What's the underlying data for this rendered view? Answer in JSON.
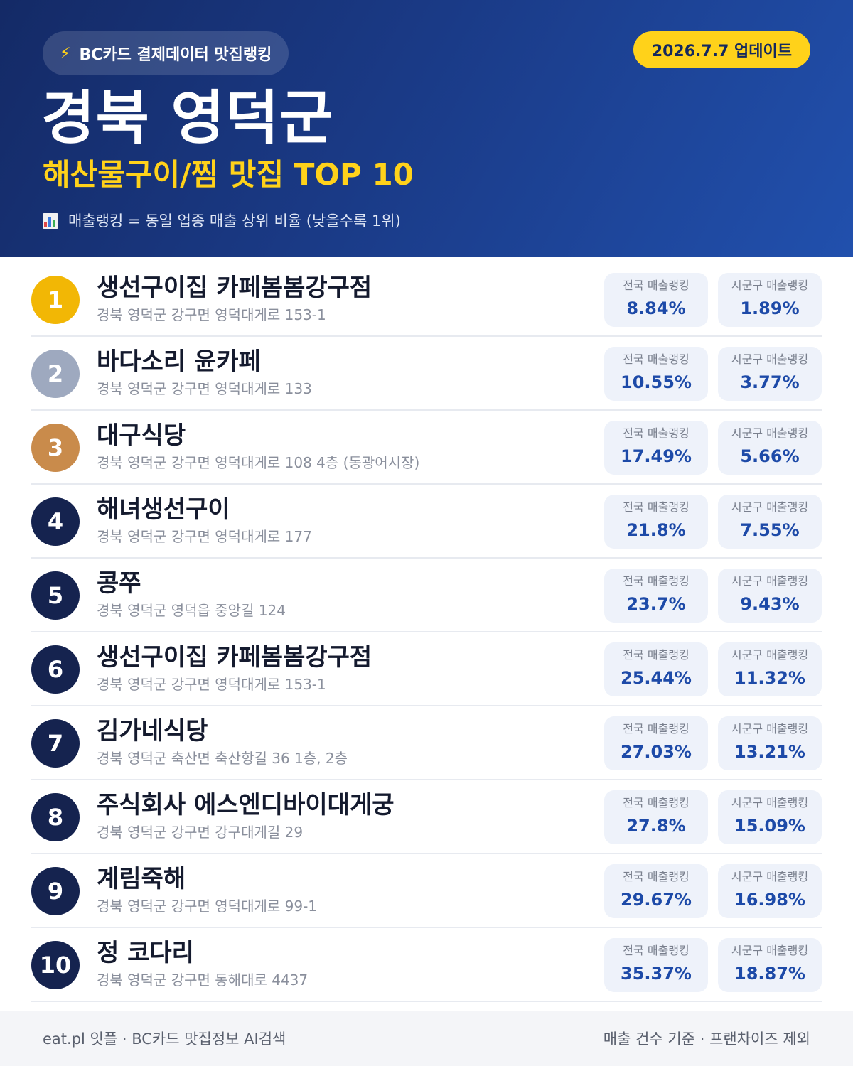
{
  "header": {
    "badge_icon": "lightning-bolt-icon",
    "badge_label": "BC카드 결제데이터 맛집랭킹",
    "update_label": "2026.7.7 업데이트",
    "title": "경북 영덕군",
    "subtitle": "해산물구이/찜 맛집 TOP 10",
    "legend_icon": "bar-chart-icon",
    "legend_text": "매출랭킹 = 동일 업종 매출 상위 비율 (낮을수록 1위)"
  },
  "colors": {
    "header_dark": "#142a66",
    "accent_yellow": "#ffd21a",
    "rank_gold": "#f2b705",
    "rank_silver": "#9ea9bf",
    "rank_bronze": "#c98b4b",
    "rank_default": "#15234f",
    "value_blue": "#1d4aa8"
  },
  "stat_labels": {
    "national": "전국 매출랭킹",
    "local": "시군구 매출랭킹"
  },
  "restaurants": [
    {
      "rank": "1",
      "name": "생선구이집 카페봄봄강구점",
      "address": "경북 영덕군 강구면 영덕대게로 153-1",
      "national": "8.84%",
      "local": "1.89%"
    },
    {
      "rank": "2",
      "name": "바다소리 윤카페",
      "address": "경북 영덕군 강구면 영덕대게로 133",
      "national": "10.55%",
      "local": "3.77%"
    },
    {
      "rank": "3",
      "name": "대구식당",
      "address": "경북 영덕군 강구면 영덕대게로 108 4층 (동광어시장)",
      "national": "17.49%",
      "local": "5.66%"
    },
    {
      "rank": "4",
      "name": "해녀생선구이",
      "address": "경북 영덕군 강구면 영덕대게로 177",
      "national": "21.8%",
      "local": "7.55%"
    },
    {
      "rank": "5",
      "name": "콩쭈",
      "address": "경북 영덕군 영덕읍 중앙길 124",
      "national": "23.7%",
      "local": "9.43%"
    },
    {
      "rank": "6",
      "name": "생선구이집 카페봄봄강구점",
      "address": "경북 영덕군 강구면 영덕대게로 153-1",
      "national": "25.44%",
      "local": "11.32%"
    },
    {
      "rank": "7",
      "name": "김가네식당",
      "address": "경북 영덕군 축산면 축산항길 36 1층, 2층",
      "national": "27.03%",
      "local": "13.21%"
    },
    {
      "rank": "8",
      "name": "주식회사 에스엔디바이대게궁",
      "address": "경북 영덕군 강구면 강구대게길 29",
      "national": "27.8%",
      "local": "15.09%"
    },
    {
      "rank": "9",
      "name": "계림죽해",
      "address": "경북 영덕군 강구면 영덕대게로 99-1",
      "national": "29.67%",
      "local": "16.98%"
    },
    {
      "rank": "10",
      "name": "정 코다리",
      "address": "경북 영덕군 강구면 동해대로 4437",
      "national": "35.37%",
      "local": "18.87%"
    }
  ],
  "footer": {
    "left": "eat.pl 잇플 · BC카드 맛집정보 AI검색",
    "right": "매출 건수 기준 · 프랜차이즈 제외"
  }
}
